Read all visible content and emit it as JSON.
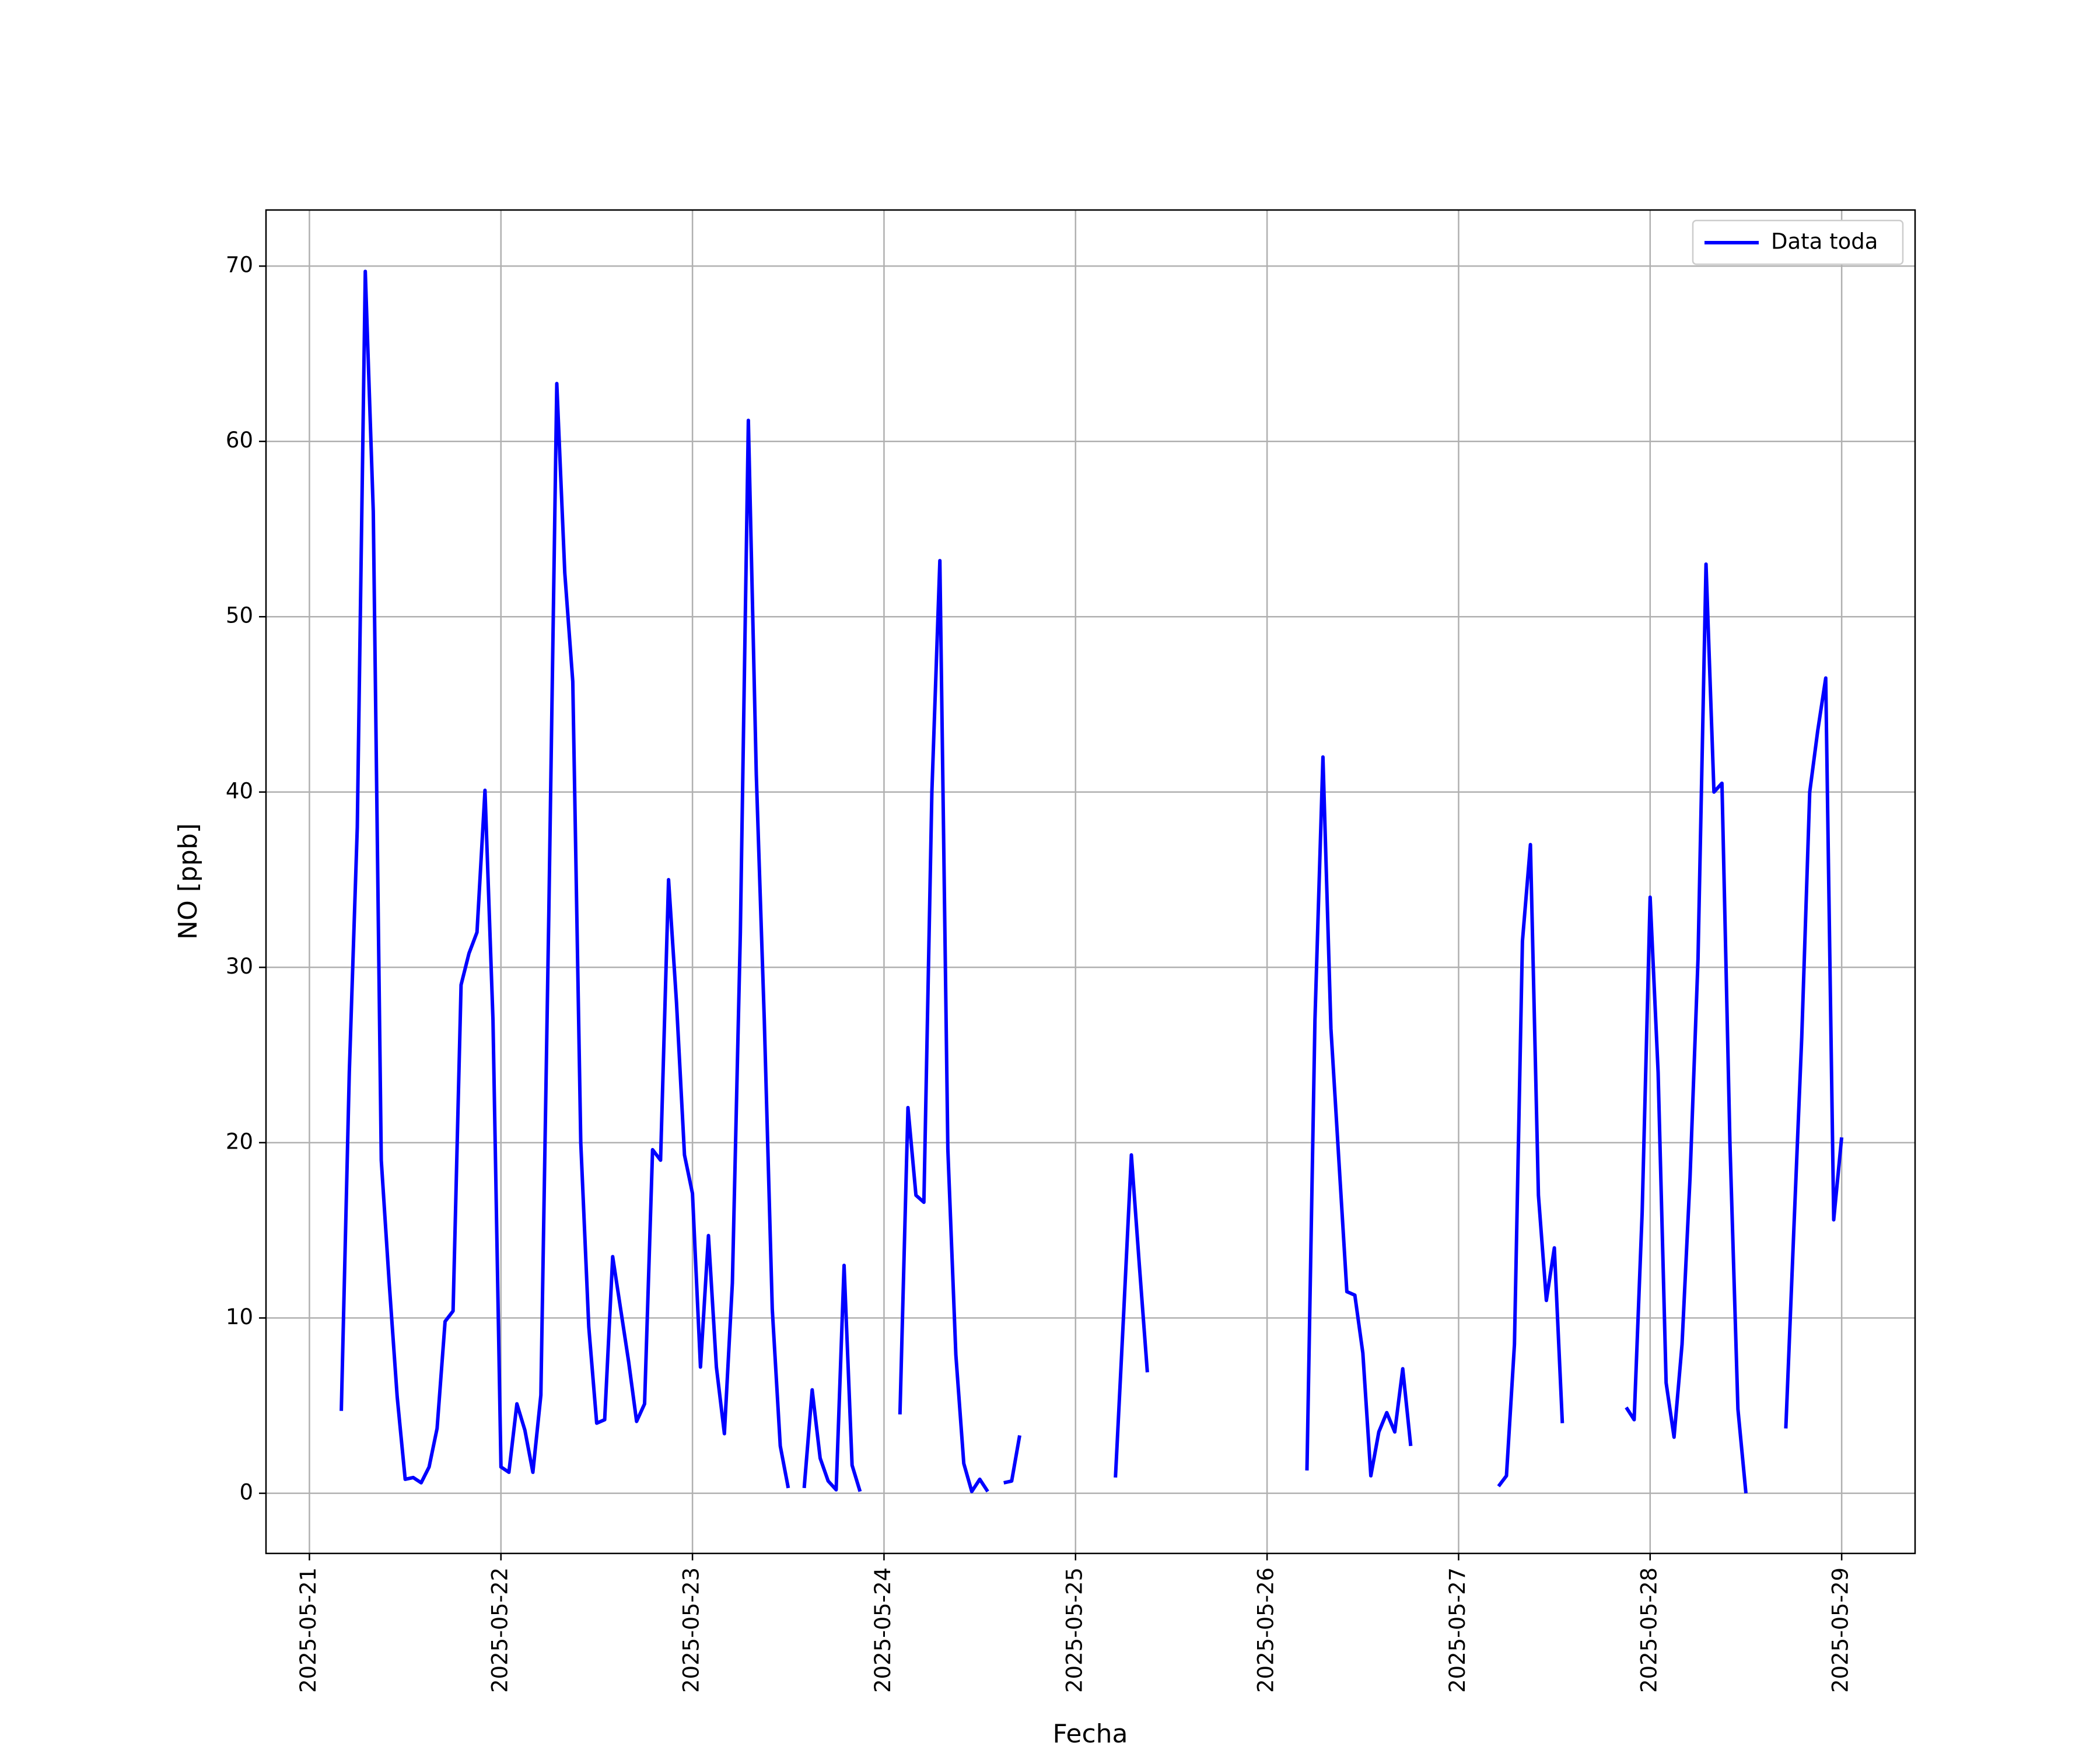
{
  "chart_data": {
    "type": "line",
    "xlabel": "Fecha",
    "ylabel": "NO [ppb]",
    "series": [
      {
        "name": "Data toda",
        "color": "#0000ff",
        "x": [
          4,
          5,
          6,
          7,
          8,
          9,
          10,
          11,
          12,
          13,
          14,
          15,
          16,
          17,
          18,
          19,
          20,
          21,
          22,
          23,
          24,
          25,
          26,
          27,
          28,
          29,
          30,
          31,
          32,
          33,
          34,
          35,
          36,
          37,
          38,
          39,
          40,
          41,
          42,
          43,
          44,
          45,
          46,
          47,
          48,
          49,
          50,
          51,
          52,
          53,
          54,
          55,
          56,
          57,
          58,
          59,
          60,
          61,
          62,
          63,
          64,
          65,
          66,
          67,
          68,
          69,
          70,
          74,
          75,
          76,
          77,
          78,
          79,
          80,
          81,
          82,
          83,
          84,
          85,
          86,
          87,
          88,
          89,
          90,
          101,
          102,
          103,
          104,
          105,
          106,
          125,
          126,
          127,
          128,
          129,
          130,
          131,
          132,
          133,
          134,
          135,
          136,
          137,
          138,
          139,
          149,
          150,
          151,
          152,
          153,
          154,
          155,
          156,
          157,
          158,
          165,
          166,
          167,
          168,
          169,
          170,
          171,
          172,
          173,
          174,
          175,
          176,
          177,
          178,
          179,
          180,
          181,
          185,
          186,
          187,
          188,
          189,
          190,
          191,
          192
        ],
        "values": [
          4.7,
          24,
          38,
          69.7,
          56,
          19,
          12,
          5.5,
          0.8,
          0.9,
          0.6,
          1.5,
          3.7,
          9.8,
          10.4,
          29,
          30.8,
          32,
          40.1,
          27,
          1.5,
          1.2,
          5.1,
          3.6,
          1.2,
          5.6,
          33,
          63.3,
          52.5,
          46.3,
          20,
          9.5,
          4,
          4.2,
          13.5,
          10.5,
          7.5,
          4.1,
          5.1,
          19.6,
          19,
          35,
          28,
          19.3,
          17.1,
          7.2,
          14.7,
          7.2,
          3.4,
          12,
          32,
          61.2,
          41,
          27,
          10.5,
          2.7,
          0.3,
          null,
          0.3,
          5.9,
          2,
          0.7,
          0.2,
          13,
          1.6,
          0.1,
          null,
          4.5,
          22,
          17,
          16.6,
          40,
          53.2,
          19.6,
          7.9,
          1.7,
          0.1,
          0.8,
          0.1,
          null,
          0.6,
          0.7,
          3.3,
          null,
          0.9,
          10,
          19.3,
          13,
          6.9,
          null,
          1.3,
          27,
          42,
          26.5,
          19,
          11.5,
          11.3,
          8,
          1,
          3.5,
          4.6,
          3.5,
          7.1,
          2.7,
          null,
          0.4,
          1,
          8.5,
          31.5,
          37,
          17,
          11,
          14,
          4,
          null,
          4.9,
          4.2,
          16,
          34,
          24,
          6.3,
          3.2,
          8.5,
          18,
          30.5,
          53,
          40,
          40.5,
          20,
          4.8,
          0,
          null,
          3.7,
          15,
          26,
          40,
          43.5,
          46.5,
          15.6,
          20.3
        ]
      }
    ],
    "xlim": [
      -5.44,
      201.2
    ],
    "xticks": [
      {
        "value": 0,
        "label": "2025-05-21"
      },
      {
        "value": 24,
        "label": "2025-05-22"
      },
      {
        "value": 48,
        "label": "2025-05-23"
      },
      {
        "value": 72,
        "label": "2025-05-24"
      },
      {
        "value": 96,
        "label": "2025-05-25"
      },
      {
        "value": 120,
        "label": "2025-05-26"
      },
      {
        "value": 144,
        "label": "2025-05-27"
      },
      {
        "value": 168,
        "label": "2025-05-28"
      },
      {
        "value": 192,
        "label": "2025-05-29"
      }
    ],
    "ylim": [
      -3.43,
      73.2
    ],
    "yticks": [
      0,
      10,
      20,
      30,
      40,
      50,
      60,
      70
    ],
    "grid": true,
    "legend": "upper right"
  }
}
